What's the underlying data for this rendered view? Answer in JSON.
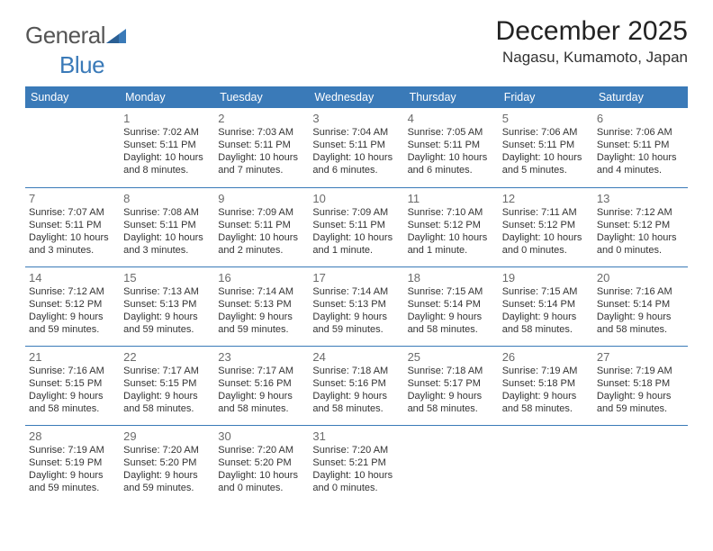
{
  "logo": {
    "general": "General",
    "blue": "Blue"
  },
  "title": "December 2025",
  "location": "Nagasu, Kumamoto, Japan",
  "colors": {
    "header_bg": "#3a7ab8",
    "header_text": "#ffffff",
    "row_border": "#3a7ab8",
    "daynum_color": "#6b6b6b",
    "text_color": "#333333",
    "background": "#ffffff"
  },
  "fonts": {
    "title_size": 30,
    "location_size": 17,
    "dayhead_size": 12.5,
    "daynum_size": 13,
    "info_size": 11
  },
  "day_headers": [
    "Sunday",
    "Monday",
    "Tuesday",
    "Wednesday",
    "Thursday",
    "Friday",
    "Saturday"
  ],
  "weeks": [
    [
      null,
      {
        "n": "1",
        "sunrise": "7:02 AM",
        "sunset": "5:11 PM",
        "daylight": "10 hours and 8 minutes."
      },
      {
        "n": "2",
        "sunrise": "7:03 AM",
        "sunset": "5:11 PM",
        "daylight": "10 hours and 7 minutes."
      },
      {
        "n": "3",
        "sunrise": "7:04 AM",
        "sunset": "5:11 PM",
        "daylight": "10 hours and 6 minutes."
      },
      {
        "n": "4",
        "sunrise": "7:05 AM",
        "sunset": "5:11 PM",
        "daylight": "10 hours and 6 minutes."
      },
      {
        "n": "5",
        "sunrise": "7:06 AM",
        "sunset": "5:11 PM",
        "daylight": "10 hours and 5 minutes."
      },
      {
        "n": "6",
        "sunrise": "7:06 AM",
        "sunset": "5:11 PM",
        "daylight": "10 hours and 4 minutes."
      }
    ],
    [
      {
        "n": "7",
        "sunrise": "7:07 AM",
        "sunset": "5:11 PM",
        "daylight": "10 hours and 3 minutes."
      },
      {
        "n": "8",
        "sunrise": "7:08 AM",
        "sunset": "5:11 PM",
        "daylight": "10 hours and 3 minutes."
      },
      {
        "n": "9",
        "sunrise": "7:09 AM",
        "sunset": "5:11 PM",
        "daylight": "10 hours and 2 minutes."
      },
      {
        "n": "10",
        "sunrise": "7:09 AM",
        "sunset": "5:11 PM",
        "daylight": "10 hours and 1 minute."
      },
      {
        "n": "11",
        "sunrise": "7:10 AM",
        "sunset": "5:12 PM",
        "daylight": "10 hours and 1 minute."
      },
      {
        "n": "12",
        "sunrise": "7:11 AM",
        "sunset": "5:12 PM",
        "daylight": "10 hours and 0 minutes."
      },
      {
        "n": "13",
        "sunrise": "7:12 AM",
        "sunset": "5:12 PM",
        "daylight": "10 hours and 0 minutes."
      }
    ],
    [
      {
        "n": "14",
        "sunrise": "7:12 AM",
        "sunset": "5:12 PM",
        "daylight": "9 hours and 59 minutes."
      },
      {
        "n": "15",
        "sunrise": "7:13 AM",
        "sunset": "5:13 PM",
        "daylight": "9 hours and 59 minutes."
      },
      {
        "n": "16",
        "sunrise": "7:14 AM",
        "sunset": "5:13 PM",
        "daylight": "9 hours and 59 minutes."
      },
      {
        "n": "17",
        "sunrise": "7:14 AM",
        "sunset": "5:13 PM",
        "daylight": "9 hours and 59 minutes."
      },
      {
        "n": "18",
        "sunrise": "7:15 AM",
        "sunset": "5:14 PM",
        "daylight": "9 hours and 58 minutes."
      },
      {
        "n": "19",
        "sunrise": "7:15 AM",
        "sunset": "5:14 PM",
        "daylight": "9 hours and 58 minutes."
      },
      {
        "n": "20",
        "sunrise": "7:16 AM",
        "sunset": "5:14 PM",
        "daylight": "9 hours and 58 minutes."
      }
    ],
    [
      {
        "n": "21",
        "sunrise": "7:16 AM",
        "sunset": "5:15 PM",
        "daylight": "9 hours and 58 minutes."
      },
      {
        "n": "22",
        "sunrise": "7:17 AM",
        "sunset": "5:15 PM",
        "daylight": "9 hours and 58 minutes."
      },
      {
        "n": "23",
        "sunrise": "7:17 AM",
        "sunset": "5:16 PM",
        "daylight": "9 hours and 58 minutes."
      },
      {
        "n": "24",
        "sunrise": "7:18 AM",
        "sunset": "5:16 PM",
        "daylight": "9 hours and 58 minutes."
      },
      {
        "n": "25",
        "sunrise": "7:18 AM",
        "sunset": "5:17 PM",
        "daylight": "9 hours and 58 minutes."
      },
      {
        "n": "26",
        "sunrise": "7:19 AM",
        "sunset": "5:18 PM",
        "daylight": "9 hours and 58 minutes."
      },
      {
        "n": "27",
        "sunrise": "7:19 AM",
        "sunset": "5:18 PM",
        "daylight": "9 hours and 59 minutes."
      }
    ],
    [
      {
        "n": "28",
        "sunrise": "7:19 AM",
        "sunset": "5:19 PM",
        "daylight": "9 hours and 59 minutes."
      },
      {
        "n": "29",
        "sunrise": "7:20 AM",
        "sunset": "5:20 PM",
        "daylight": "9 hours and 59 minutes."
      },
      {
        "n": "30",
        "sunrise": "7:20 AM",
        "sunset": "5:20 PM",
        "daylight": "10 hours and 0 minutes."
      },
      {
        "n": "31",
        "sunrise": "7:20 AM",
        "sunset": "5:21 PM",
        "daylight": "10 hours and 0 minutes."
      },
      null,
      null,
      null
    ]
  ],
  "labels": {
    "sunrise": "Sunrise:",
    "sunset": "Sunset:",
    "daylight": "Daylight:"
  }
}
